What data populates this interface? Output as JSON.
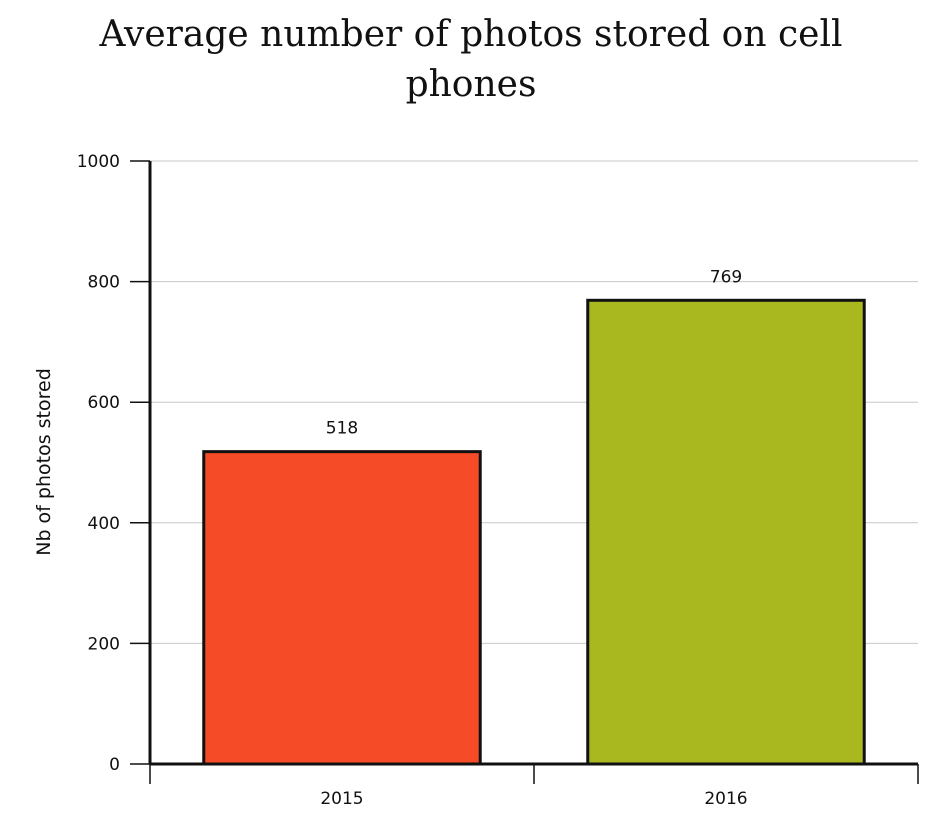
{
  "chart_data": {
    "type": "bar",
    "title_lines": [
      "Average number of photos stored on cell",
      "phones"
    ],
    "categories": [
      "2015",
      "2016"
    ],
    "values": [
      518,
      769
    ],
    "colors": [
      "#f64b27",
      "#a8b81e"
    ],
    "ylabel": "Nb of photos stored",
    "xlabel": "",
    "ylim": [
      0,
      1000
    ],
    "yticks": [
      "0",
      "200",
      "400",
      "600",
      "800",
      "1000"
    ],
    "grid": true
  }
}
